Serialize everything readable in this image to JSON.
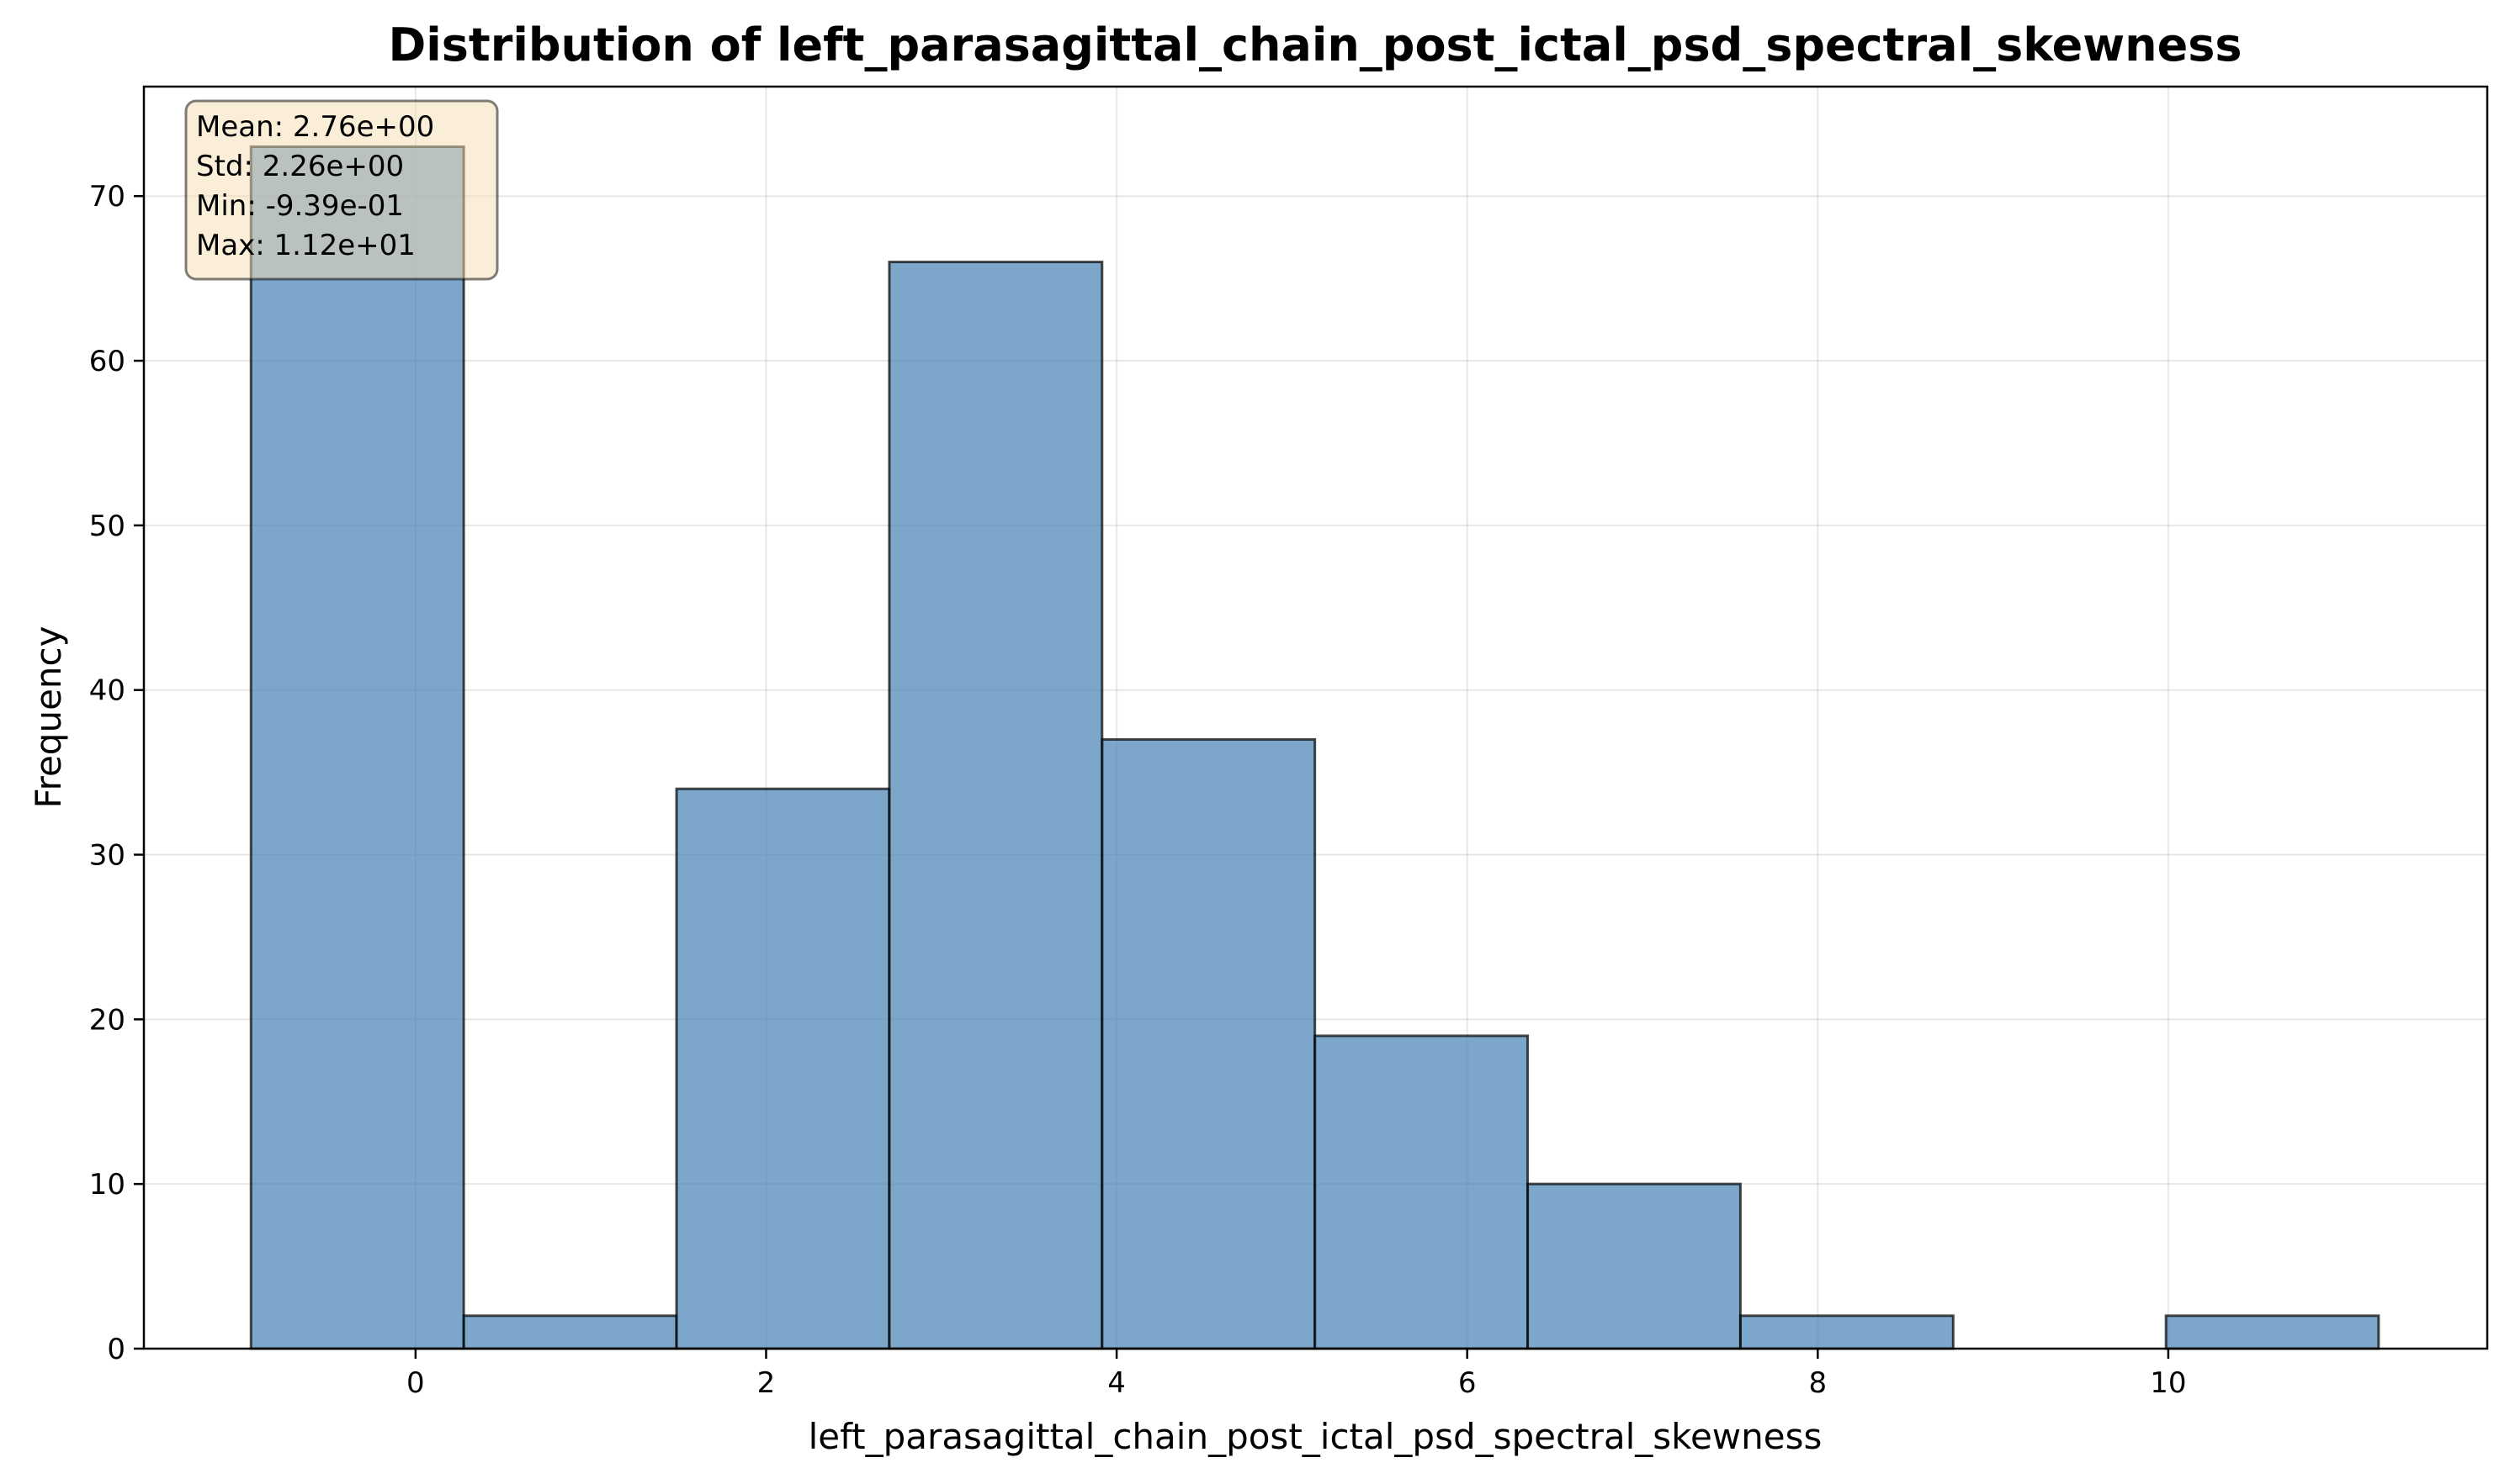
{
  "chart_data": {
    "type": "bar",
    "title": "Distribution of left_parasagittal_chain_post_ictal_psd_spectral_skewness",
    "xlabel": "left_parasagittal_chain_post_ictal_psd_spectral_skewness",
    "ylabel": "Frequency",
    "bin_edges": [
      -0.939,
      0.275,
      1.489,
      2.703,
      3.917,
      5.131,
      6.345,
      7.559,
      8.773,
      9.987,
      11.2
    ],
    "values": [
      73,
      2,
      34,
      66,
      37,
      19,
      10,
      2,
      0,
      2
    ],
    "xlim": [
      -1.55,
      11.82
    ],
    "ylim": [
      0,
      76.65
    ],
    "xticks": [
      0,
      2,
      4,
      6,
      8,
      10
    ],
    "xtick_labels": [
      "0",
      "2",
      "4",
      "6",
      "8",
      "10"
    ],
    "yticks": [
      0,
      10,
      20,
      30,
      40,
      50,
      60,
      70
    ],
    "ytick_labels": [
      "0",
      "10",
      "20",
      "30",
      "40",
      "50",
      "60",
      "70"
    ],
    "grid": true,
    "bar_color": "#4682b4",
    "stats_box": {
      "placement": "top-left",
      "lines": [
        "Mean: 2.76e+00",
        "Std: 2.26e+00",
        "Min: -9.39e-01",
        "Max: 1.12e+01"
      ],
      "background": "#f5deb3"
    }
  }
}
